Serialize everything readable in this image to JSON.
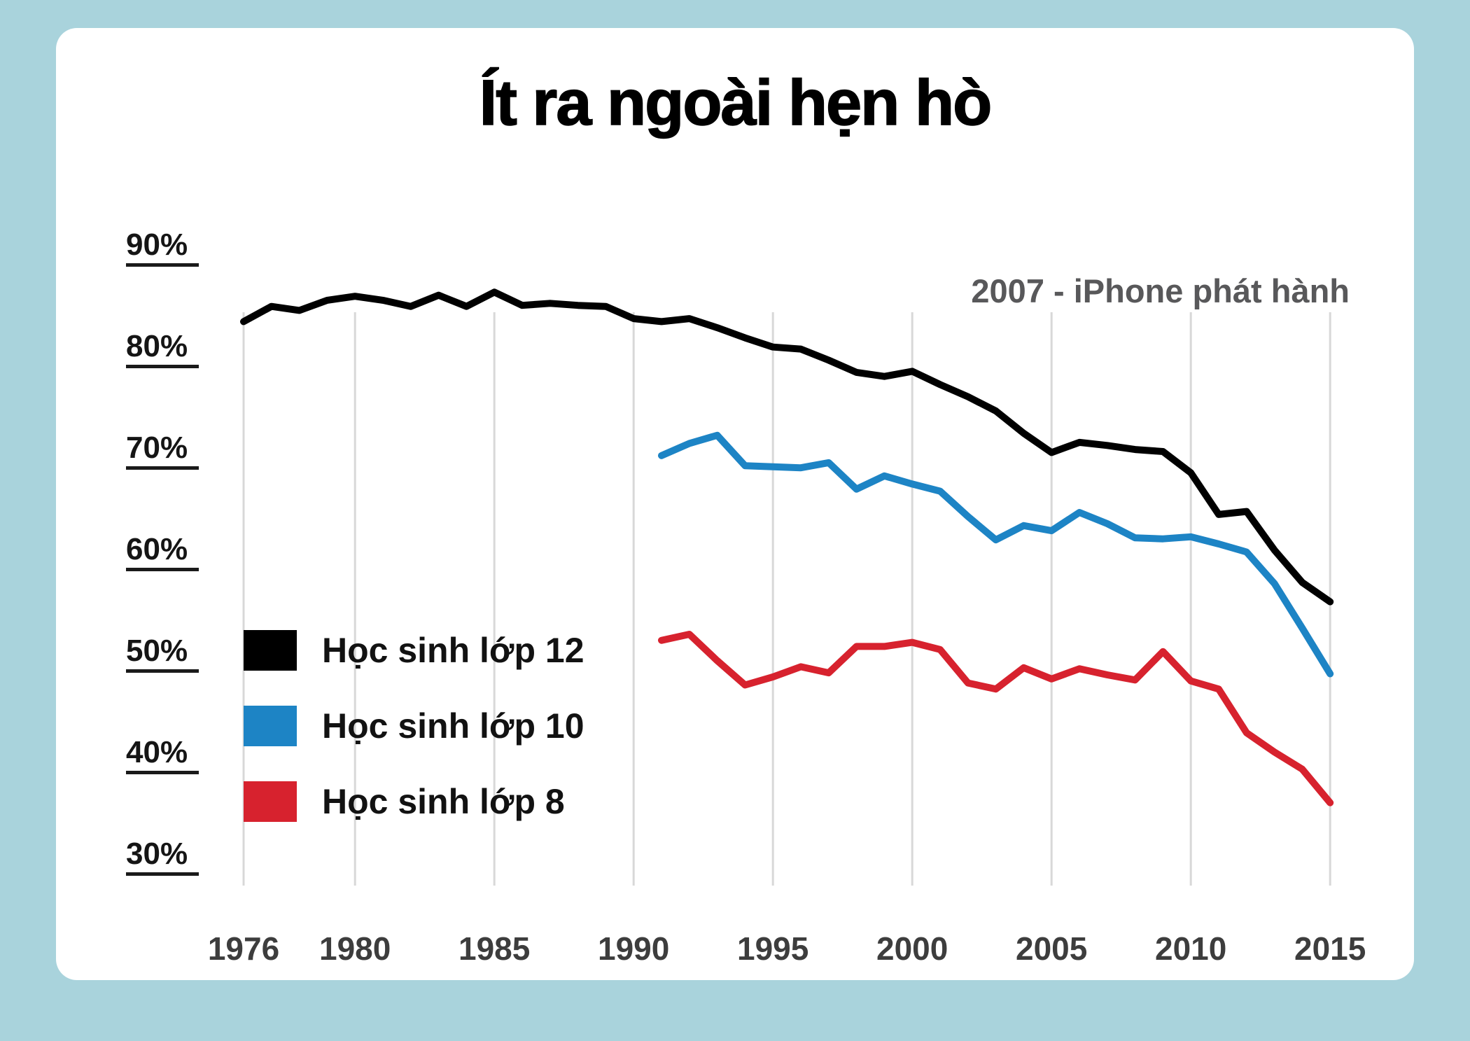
{
  "colors": {
    "page_background": "#a9d3dc",
    "card_background": "#ffffff",
    "gridline": "#d8d8d8",
    "x_axis_label": "#3d3d3d",
    "y_axis_label": "#151515",
    "annotation_text": "#58585a",
    "title_text": "#000000",
    "series_12": "#000000",
    "series_10": "#1d84c5",
    "series_8": "#d7222e"
  },
  "title": "Ít ra ngoài hẹn hò",
  "annotation": "2007 - iPhone phát hành",
  "legend": [
    {
      "label": "Học sinh lớp 12",
      "color": "#000000"
    },
    {
      "label": "Học sinh lớp 10",
      "color": "#1d84c5"
    },
    {
      "label": "Học sinh lớp 8",
      "color": "#d7222e"
    }
  ],
  "chart_data": {
    "type": "line",
    "title": "Ít ra ngoài hẹn hò",
    "subtitle": "",
    "annotation": "2007 - iPhone phát hành",
    "grid": "vertical-only",
    "legend_position": "middle-left",
    "x_axis": {
      "min": 1976,
      "max": 2015,
      "ticks": [
        {
          "value": 1976,
          "label": "1976"
        },
        {
          "value": 1980,
          "label": "1980"
        },
        {
          "value": 1985,
          "label": "1985"
        },
        {
          "value": 1990,
          "label": "1990"
        },
        {
          "value": 1995,
          "label": "1995"
        },
        {
          "value": 2000,
          "label": "2000"
        },
        {
          "value": 2005,
          "label": "2005"
        },
        {
          "value": 2010,
          "label": "2010"
        },
        {
          "value": 2015,
          "label": "2015"
        }
      ]
    },
    "y_axis": {
      "min": 30,
      "max": 90,
      "unit": "%",
      "ticks": [
        {
          "value": 90,
          "label": "90%"
        },
        {
          "value": 80,
          "label": "80%"
        },
        {
          "value": 70,
          "label": "70%"
        },
        {
          "value": 60,
          "label": "60%"
        },
        {
          "value": 50,
          "label": "50%"
        },
        {
          "value": 40,
          "label": "40%"
        },
        {
          "value": 30,
          "label": "30%"
        }
      ]
    },
    "series": [
      {
        "name": "Học sinh lớp 12",
        "color": "#000000",
        "start_year": 1976,
        "step": 1,
        "values": [
          82.8,
          84.3,
          83.9,
          84.9,
          85.3,
          84.9,
          84.3,
          85.4,
          84.3,
          85.7,
          84.4,
          84.6,
          84.4,
          84.3,
          83.1,
          82.8,
          83.1,
          82.2,
          81.2,
          80.3,
          80.1,
          79.0,
          77.8,
          77.4,
          77.9,
          76.6,
          75.4,
          74.0,
          71.8,
          69.9,
          70.9,
          70.6,
          70.2,
          70.0,
          67.9,
          63.8,
          64.1,
          60.3,
          57.1,
          55.2
        ]
      },
      {
        "name": "Học sinh lớp 10",
        "color": "#1d84c5",
        "start_year": 1991,
        "step": 1,
        "values": [
          69.6,
          70.8,
          71.6,
          68.6,
          68.5,
          68.4,
          68.9,
          66.3,
          67.6,
          66.8,
          66.1,
          63.6,
          61.3,
          62.7,
          62.2,
          64.0,
          62.9,
          61.5,
          61.4,
          61.6,
          60.9,
          60.1,
          57.0,
          52.6,
          48.1
        ]
      },
      {
        "name": "Học sinh lớp 8",
        "color": "#d7222e",
        "start_year": 1991,
        "step": 1,
        "values": [
          51.4,
          52.0,
          49.4,
          47.0,
          47.8,
          48.8,
          48.2,
          50.8,
          50.8,
          51.2,
          50.5,
          47.2,
          46.6,
          48.7,
          47.6,
          48.6,
          48.0,
          47.5,
          50.3,
          47.4,
          46.6,
          42.3,
          40.4,
          38.7,
          35.4
        ]
      }
    ]
  }
}
